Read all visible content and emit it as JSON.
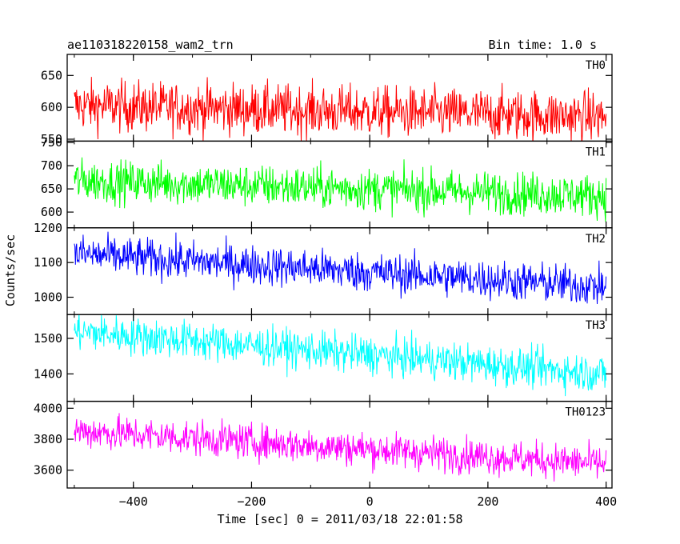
{
  "chart_data": {
    "type": "line",
    "title_left": "ae110318220158_wam2_trn",
    "title_right": "Bin time: 1.0 s",
    "xlabel": "Time [sec] 0 = 2011/03/18 22:01:58",
    "ylabel": "Counts/sec",
    "xlim": [
      -512,
      410
    ],
    "x_ticks": [
      -400,
      -200,
      0,
      200,
      400
    ],
    "x_range_data": [
      -500,
      400
    ],
    "panels": [
      {
        "label": "TH0",
        "color": "#ff0000",
        "ylim": [
          547,
          683
        ],
        "yticks": [
          550,
          600,
          650
        ],
        "ytick_labels": [
          "550",
          "600",
          "650"
        ],
        "start": 603,
        "end": 585,
        "noise": 28
      },
      {
        "label": "TH1",
        "color": "#00ff00",
        "ylim": [
          566,
          753
        ],
        "yticks": [
          600,
          650,
          700,
          750
        ],
        "ytick_labels": [
          "600",
          "650",
          "700",
          "750"
        ],
        "start": 668,
        "end": 635,
        "noise": 32
      },
      {
        "label": "TH2",
        "color": "#0000ff",
        "ylim": [
          950,
          1200
        ],
        "yticks": [
          1000,
          1100,
          1200
        ],
        "ytick_labels": [
          "1000",
          "1100",
          "1200"
        ],
        "start": 1125,
        "end": 1030,
        "noise": 40
      },
      {
        "label": "TH3",
        "color": "#00ffff",
        "ylim": [
          1323,
          1567
        ],
        "yticks": [
          1400,
          1500
        ],
        "ytick_labels": [
          "1400",
          "1500"
        ],
        "start": 1520,
        "end": 1400,
        "noise": 38
      },
      {
        "label": "TH0123",
        "color": "#ff00ff",
        "ylim": [
          3485,
          4045
        ],
        "yticks": [
          3600,
          3800,
          4000
        ],
        "ytick_labels": [
          "3600",
          "3800",
          "4000"
        ],
        "start": 3855,
        "end": 3640,
        "noise": 80
      }
    ]
  }
}
